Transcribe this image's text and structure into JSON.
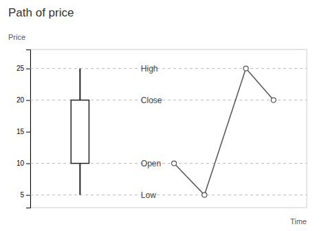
{
  "chart_data": {
    "type": "candlestick",
    "title": "Path of price",
    "y_label": "Price",
    "x_label": "Time",
    "xlim": [
      0,
      10
    ],
    "ylim": [
      3,
      28
    ],
    "yticks": [
      5,
      10,
      15,
      20,
      25
    ],
    "tick_labels": "y",
    "grid": false,
    "series": [
      {
        "type": "candlestick",
        "color": "#222222",
        "x": [
          1.8
        ],
        "open": [
          10
        ],
        "close": [
          20
        ],
        "high": [
          25
        ],
        "low": [
          5
        ]
      },
      {
        "type": "line",
        "color": "#555555",
        "marker": "circle",
        "x": [
          5.2,
          6.3,
          7.8,
          8.8
        ],
        "values": [
          10,
          5,
          25,
          20
        ]
      }
    ],
    "annotations": [
      {
        "text": "High",
        "x": 4.0,
        "y": 25
      },
      {
        "text": "Close",
        "x": 4.0,
        "y": 20
      },
      {
        "text": "Open",
        "x": 4.0,
        "y": 10
      },
      {
        "text": "Low",
        "x": 4.0,
        "y": 5
      }
    ],
    "hlines": [
      25,
      20,
      10,
      5
    ]
  }
}
